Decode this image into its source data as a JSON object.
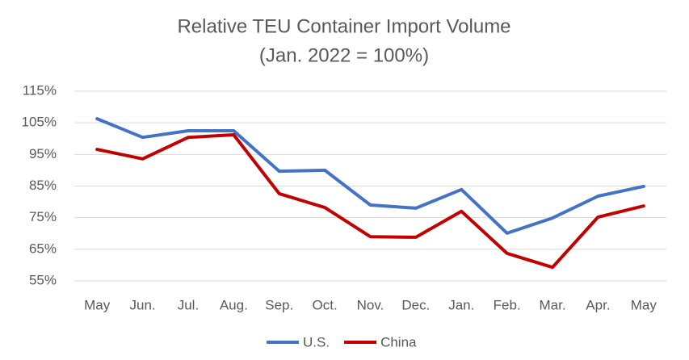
{
  "chart_data": {
    "type": "line",
    "title": "Relative TEU Container Import  Volume",
    "subtitle": "(Jan. 2022 = 100%)",
    "categories": [
      "May",
      "Jun.",
      "Jul.",
      "Aug.",
      "Sep.",
      "Oct.",
      "Nov.",
      "Dec.",
      "Jan.",
      "Feb.",
      "Mar.",
      "Apr.",
      "May"
    ],
    "series": [
      {
        "name": "U.S.",
        "color": "#4472c4",
        "values": [
          106.3,
          100.4,
          102.5,
          102.5,
          89.7,
          90.0,
          79.0,
          78.0,
          83.9,
          70.1,
          74.9,
          81.8,
          84.9
        ]
      },
      {
        "name": "China",
        "color": "#c00000",
        "values": [
          96.6,
          93.6,
          100.4,
          101.2,
          82.6,
          78.2,
          69.0,
          68.8,
          77.0,
          63.7,
          59.3,
          75.2,
          78.7
        ]
      }
    ],
    "ylim": [
      55,
      115
    ],
    "yticks": [
      {
        "value": 55,
        "label": "55%"
      },
      {
        "value": 65,
        "label": "65%"
      },
      {
        "value": 75,
        "label": "75%"
      },
      {
        "value": 85,
        "label": "85%"
      },
      {
        "value": 95,
        "label": "95%"
      },
      {
        "value": 105,
        "label": "105%"
      },
      {
        "value": 115,
        "label": "115%"
      }
    ],
    "grid": true,
    "legend": "bottom"
  }
}
